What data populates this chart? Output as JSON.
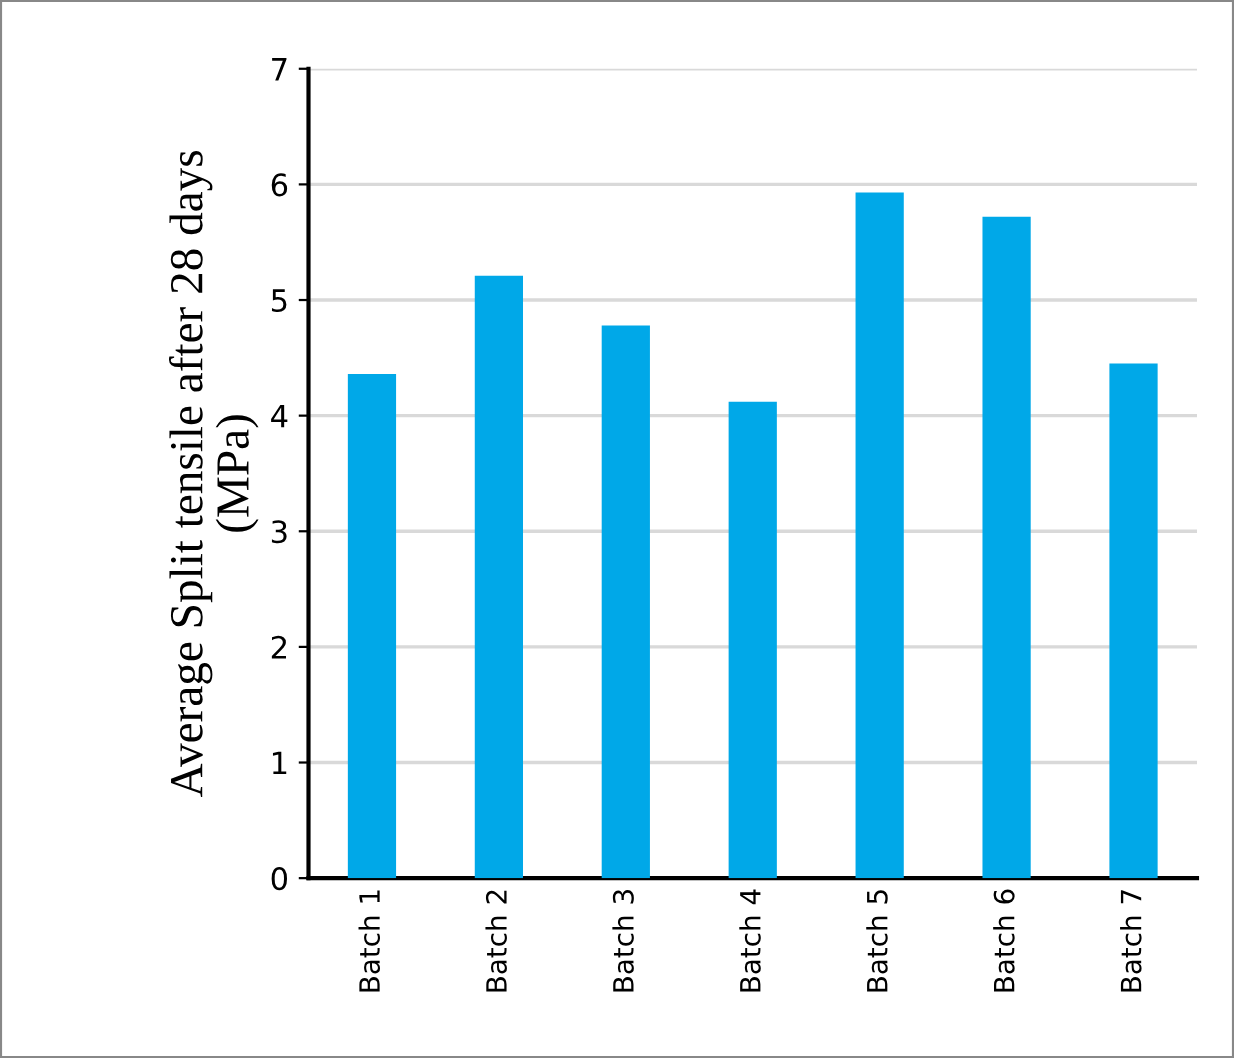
{
  "chart_data": {
    "type": "bar",
    "ylabel": "Average Split tensile after 28 days\n(MPa)",
    "categories": [
      "Batch 1",
      "Batch 2",
      "Batch 3",
      "Batch 4",
      "Batch 5",
      "Batch 6",
      "Batch 7"
    ],
    "values": [
      4.36,
      5.21,
      4.78,
      4.12,
      5.93,
      5.72,
      4.45
    ],
    "color": "#00a8e8",
    "ylim": [
      0,
      7
    ],
    "yticks": [
      0,
      1,
      2,
      3,
      4,
      5,
      6,
      7
    ],
    "grid": "y"
  }
}
